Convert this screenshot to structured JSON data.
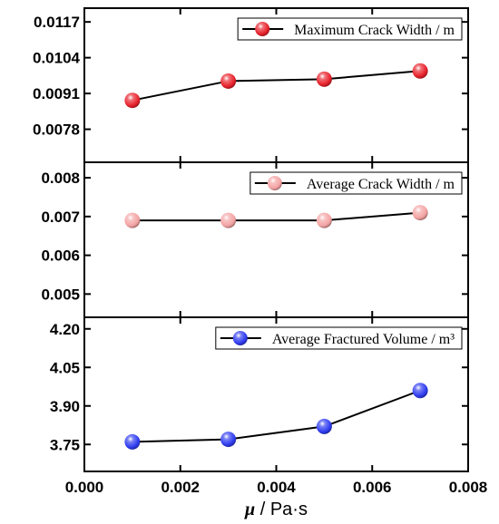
{
  "chart_data": {
    "type": "line",
    "shared_x": {
      "ticks": [
        "0.000",
        "0.002",
        "0.004",
        "0.006",
        "0.008"
      ],
      "range": [
        0.0,
        0.008
      ],
      "label_symbol": "μ",
      "label_unit": " / Pa·s"
    },
    "panels": [
      {
        "id": "max-crack",
        "legend": "Maximum Crack Width / m",
        "color": "#e8212b",
        "ylim": [
          0.0066,
          0.0122
        ],
        "yticks": [
          "0.0078",
          "0.0091",
          "0.0104",
          "0.0117"
        ],
        "ytick_values": [
          0.0078,
          0.0091,
          0.0104,
          0.0117
        ],
        "x": [
          0.001,
          0.003,
          0.005,
          0.007
        ],
        "y": [
          0.00885,
          0.00955,
          0.00962,
          0.00992
        ]
      },
      {
        "id": "avg-crack",
        "legend": "Average Crack Width / m",
        "color": "#f4a3a3",
        "ylim": [
          0.0044,
          0.0084
        ],
        "yticks": [
          "0.005",
          "0.006",
          "0.007",
          "0.008"
        ],
        "ytick_values": [
          0.005,
          0.006,
          0.007,
          0.008
        ],
        "x": [
          0.001,
          0.003,
          0.005,
          0.007
        ],
        "y": [
          0.0069,
          0.0069,
          0.0069,
          0.0071
        ]
      },
      {
        "id": "avg-volume",
        "legend": "Average Fractured Volume / m³",
        "color": "#2f3cf0",
        "ylim": [
          3.645,
          4.245
        ],
        "yticks": [
          "3.75",
          "3.90",
          "4.05",
          "4.20"
        ],
        "ytick_values": [
          3.75,
          3.9,
          4.05,
          4.2
        ],
        "x": [
          0.001,
          0.003,
          0.005,
          0.007
        ],
        "y": [
          3.76,
          3.77,
          3.82,
          3.96
        ]
      }
    ]
  }
}
